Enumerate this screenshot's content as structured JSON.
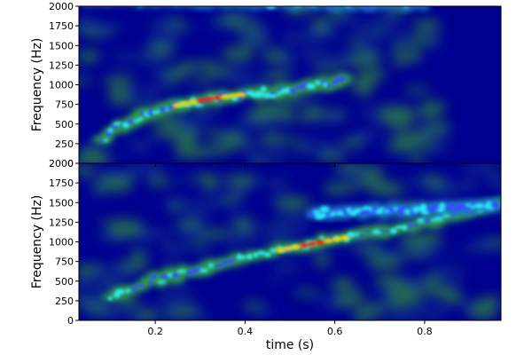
{
  "chart_data": [
    {
      "type": "heatmap",
      "title": "",
      "xlabel": "",
      "ylabel": "Frequency (Hz)",
      "xlim": [
        0.03,
        0.97
      ],
      "ylim": [
        0,
        2000
      ],
      "yticks": [
        0,
        250,
        500,
        750,
        1000,
        1250,
        1500,
        1750,
        2000
      ],
      "xticks": [
        0.2,
        0.4,
        0.6,
        0.8
      ],
      "xtick_labels_visible": false,
      "colormap": "jet",
      "colors": {
        "background": "#00008f",
        "low": "#0a2a8a",
        "mid": "#2e8b3c",
        "high": "#ff2000"
      },
      "grid": false,
      "signal_end_s": 0.835,
      "series": [
        {
          "role": "main chirp",
          "points": [
            [
              0.08,
              300
            ],
            [
              0.12,
              470
            ],
            [
              0.18,
              620
            ],
            [
              0.25,
              740
            ],
            [
              0.32,
              820
            ],
            [
              0.4,
              880
            ],
            [
              0.48,
              920
            ],
            [
              0.55,
              980
            ],
            [
              0.62,
              1050
            ]
          ],
          "peak_at": [
            0.32,
            820
          ]
        },
        {
          "role": "noise band",
          "points": [
            [
              0.05,
              2080
            ],
            [
              0.1,
              2075
            ],
            [
              0.2,
              2070
            ],
            [
              0.3,
              2060
            ],
            [
              0.4,
              2050
            ],
            [
              0.5,
              2040
            ],
            [
              0.6,
              2030
            ],
            [
              0.7,
              2025
            ],
            [
              0.8,
              2020
            ]
          ]
        }
      ]
    },
    {
      "type": "heatmap",
      "title": "",
      "xlabel": "time (s)",
      "ylabel": "Frequency (Hz)",
      "xlim": [
        0.03,
        0.97
      ],
      "ylim": [
        0,
        2000
      ],
      "yticks": [
        0,
        250,
        500,
        750,
        1000,
        1250,
        1500,
        1750,
        2000
      ],
      "xticks": [
        0.2,
        0.4,
        0.6,
        0.8
      ],
      "xtick_labels_visible": true,
      "colormap": "jet",
      "colors": {
        "background": "#00008f",
        "low": "#0a2a8a",
        "mid": "#2e8b3c",
        "high": "#ff2000"
      },
      "grid": false,
      "signal_end_s": 1.0,
      "series": [
        {
          "role": "main chirp",
          "points": [
            [
              0.1,
              280
            ],
            [
              0.15,
              400
            ],
            [
              0.2,
              520
            ],
            [
              0.3,
              650
            ],
            [
              0.4,
              790
            ],
            [
              0.5,
              920
            ],
            [
              0.6,
              1030
            ],
            [
              0.7,
              1130
            ],
            [
              0.8,
              1250
            ],
            [
              0.9,
              1380
            ],
            [
              0.97,
              1520
            ]
          ],
          "peak_at": [
            0.55,
            1000
          ]
        },
        {
          "role": "upper harmonic",
          "points": [
            [
              0.55,
              1350
            ],
            [
              0.6,
              1380
            ],
            [
              0.7,
              1400
            ],
            [
              0.8,
              1420
            ],
            [
              0.9,
              1440
            ],
            [
              0.96,
              1480
            ]
          ]
        }
      ]
    }
  ]
}
